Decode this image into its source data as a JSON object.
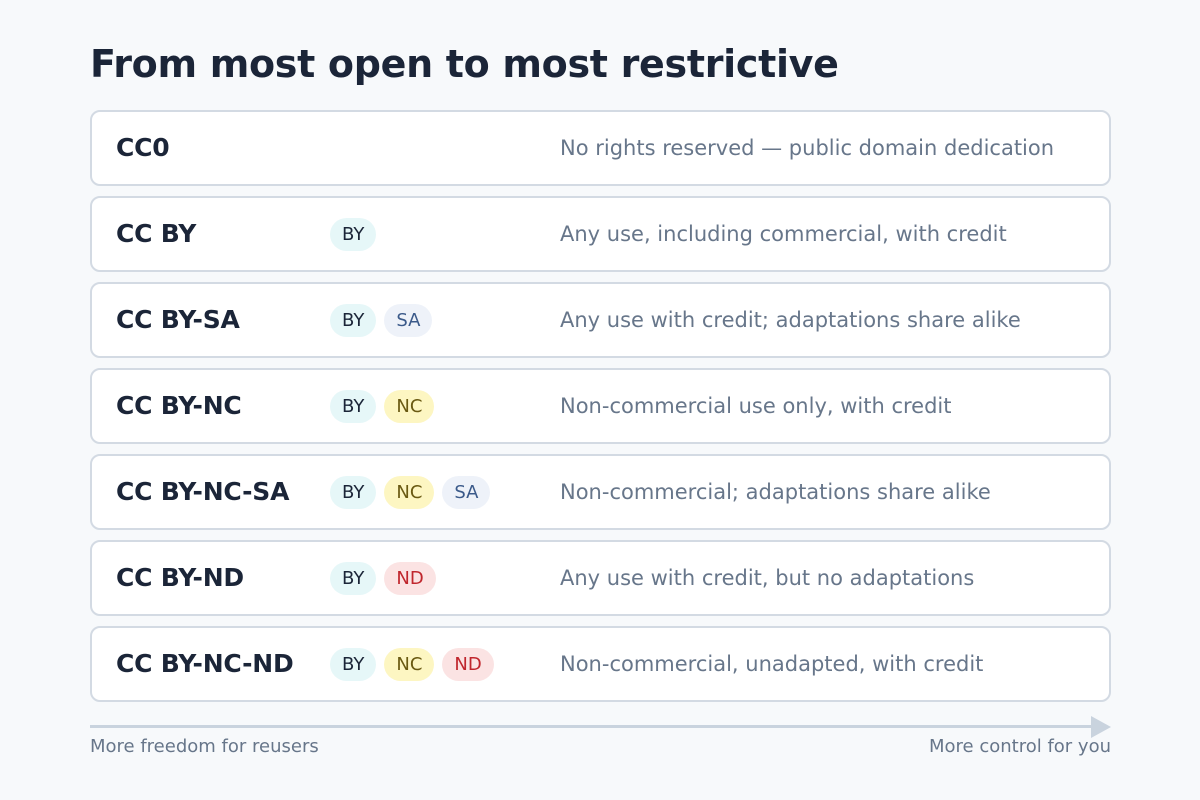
{
  "title": "From most open to most restrictive",
  "badge_styles": {
    "BY": {
      "bg": "#e6f7f8",
      "fg": "#1b2538"
    },
    "SA": {
      "bg": "#eef2f9",
      "fg": "#3b5a8a"
    },
    "NC": {
      "bg": "#fdf6c2",
      "fg": "#6a5a12"
    },
    "ND": {
      "bg": "#fbe3e3",
      "fg": "#c0262d"
    }
  },
  "licenses": [
    {
      "name": "CC0",
      "badges": [],
      "description": "No rights reserved — public domain dedication"
    },
    {
      "name": "CC BY",
      "badges": [
        "BY"
      ],
      "description": "Any use, including commercial, with credit"
    },
    {
      "name": "CC BY-SA",
      "badges": [
        "BY",
        "SA"
      ],
      "description": "Any use with credit; adaptations share alike"
    },
    {
      "name": "CC BY-NC",
      "badges": [
        "BY",
        "NC"
      ],
      "description": "Non-commercial use only, with credit"
    },
    {
      "name": "CC BY-NC-SA",
      "badges": [
        "BY",
        "NC",
        "SA"
      ],
      "description": "Non-commercial; adaptations share alike"
    },
    {
      "name": "CC BY-ND",
      "badges": [
        "BY",
        "ND"
      ],
      "description": "Any use with credit, but no adaptations"
    },
    {
      "name": "CC BY-NC-ND",
      "badges": [
        "BY",
        "NC",
        "ND"
      ],
      "description": "Non-commercial, unadapted, with credit"
    }
  ],
  "axis": {
    "left_label": "More freedom for reusers",
    "right_label": "More control for you"
  }
}
